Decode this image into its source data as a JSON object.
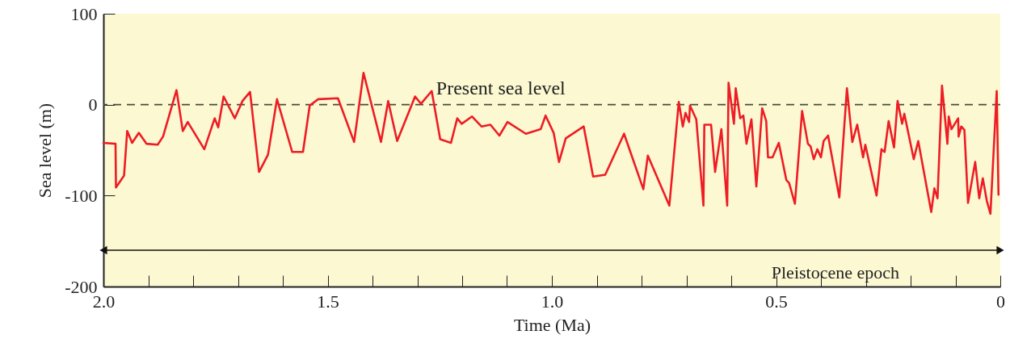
{
  "chart_data": {
    "type": "line",
    "xlabel": "Time (Ma)",
    "ylabel": "Sea level (m)",
    "x": [
      2.0,
      1.973,
      1.972,
      1.954,
      1.947,
      1.936,
      1.921,
      1.904,
      1.879,
      1.867,
      1.837,
      1.823,
      1.812,
      1.775,
      1.752,
      1.744,
      1.732,
      1.707,
      1.69,
      1.673,
      1.653,
      1.633,
      1.613,
      1.579,
      1.555,
      1.54,
      1.521,
      1.477,
      1.441,
      1.42,
      1.381,
      1.365,
      1.345,
      1.305,
      1.292,
      1.268,
      1.249,
      1.225,
      1.211,
      1.201,
      1.178,
      1.157,
      1.137,
      1.117,
      1.099,
      1.058,
      1.025,
      1.014,
      0.996,
      0.984,
      0.969,
      0.929,
      0.908,
      0.881,
      0.839,
      0.796,
      0.786,
      0.738,
      0.717,
      0.708,
      0.702,
      0.694,
      0.692,
      0.678,
      0.662,
      0.66,
      0.645,
      0.636,
      0.622,
      0.609,
      0.606,
      0.594,
      0.59,
      0.58,
      0.573,
      0.566,
      0.555,
      0.544,
      0.531,
      0.522,
      0.518,
      0.508,
      0.494,
      0.477,
      0.471,
      0.458,
      0.442,
      0.429,
      0.423,
      0.416,
      0.408,
      0.4,
      0.394,
      0.384,
      0.359,
      0.342,
      0.33,
      0.319,
      0.306,
      0.301,
      0.276,
      0.265,
      0.258,
      0.249,
      0.237,
      0.229,
      0.219,
      0.214,
      0.193,
      0.183,
      0.154,
      0.147,
      0.14,
      0.13,
      0.118,
      0.115,
      0.109,
      0.094,
      0.093,
      0.087,
      0.08,
      0.072,
      0.056,
      0.047,
      0.039,
      0.03,
      0.022,
      0.008,
      0.004
    ],
    "series": [
      {
        "color": "#ee1c25",
        "values": [
          -42,
          -43,
          -91,
          -78,
          -29,
          -42,
          -31,
          -43,
          -44,
          -35,
          16,
          -29,
          -19,
          -49,
          -15,
          -25,
          9,
          -15,
          4,
          14,
          -74,
          -55,
          6,
          -52,
          -52,
          -1,
          6,
          7,
          -41,
          35,
          -41,
          4,
          -40,
          9,
          1,
          15,
          -38,
          -42,
          -15,
          -21,
          -13,
          -24,
          -22,
          -34,
          -19,
          -32,
          -27,
          -12,
          -31,
          -63,
          -37,
          -24,
          -79,
          -77,
          -32,
          -93,
          -56,
          -111,
          3,
          -24,
          -9,
          -19,
          -1,
          -16,
          -111,
          -22,
          -22,
          -74,
          -27,
          -111,
          24,
          -21,
          18,
          -15,
          -12,
          -43,
          -16,
          -90,
          -4,
          -18,
          -58,
          -58,
          -42,
          -83,
          -86,
          -109,
          -7,
          -43,
          -46,
          -60,
          -49,
          -58,
          -40,
          -34,
          -102,
          18,
          -41,
          -22,
          -58,
          -44,
          -100,
          -49,
          -52,
          -18,
          -47,
          4,
          -21,
          -10,
          -60,
          -40,
          -118,
          -92,
          -103,
          21,
          -43,
          -13,
          -27,
          -15,
          -35,
          -24,
          -28,
          -108,
          -63,
          -103,
          -81,
          -106,
          -120,
          15,
          -99
        ]
      },
      {
        "name": "Pleistocene epoch",
        "color": "#111111",
        "marker": "triangle",
        "x": [
          2.0,
          0
        ],
        "values": [
          -160,
          -160
        ]
      }
    ],
    "xlim": [
      2.0,
      0
    ],
    "ylim": [
      -200,
      100
    ],
    "xticks": [
      {
        "value": 2.0,
        "label": "2.0"
      },
      {
        "value": 1.9,
        "label": null
      },
      {
        "value": 1.8,
        "label": null
      },
      {
        "value": 1.7,
        "label": null
      },
      {
        "value": 1.6,
        "label": null
      },
      1.5,
      {
        "value": 1.4,
        "label": null
      },
      {
        "value": 1.3,
        "label": null
      },
      {
        "value": 1.2,
        "label": null
      },
      {
        "value": 1.1,
        "label": null
      },
      {
        "value": 1.0,
        "label": "1.0"
      },
      {
        "value": 0.9,
        "label": null
      },
      {
        "value": 0.8,
        "label": null
      },
      {
        "value": 0.7,
        "label": null
      },
      {
        "value": 0.6,
        "label": null
      },
      0.5,
      {
        "value": 0.4,
        "label": null
      },
      {
        "value": 0.3,
        "label": null
      },
      {
        "value": 0.2,
        "label": null
      },
      {
        "value": 0.1,
        "label": null
      },
      0
    ],
    "yticks": [
      -200,
      -100,
      0,
      100
    ],
    "ref_lines": [
      {
        "axis": "y",
        "value": 0,
        "label": "Present sea level",
        "color": "#4a4a3a",
        "line_style": "dashed"
      }
    ],
    "grid": false,
    "marker": "none",
    "line_style": "solid"
  }
}
